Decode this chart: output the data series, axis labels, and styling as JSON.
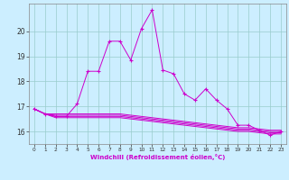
{
  "background_color": "#cceeff",
  "line_color": "#cc00cc",
  "grid_color": "#99cccc",
  "ylim": [
    15.5,
    21.1
  ],
  "xlim": [
    -0.5,
    23.5
  ],
  "yticks": [
    16,
    17,
    18,
    19,
    20
  ],
  "xticks": [
    0,
    1,
    2,
    3,
    4,
    5,
    6,
    7,
    8,
    9,
    10,
    11,
    12,
    13,
    14,
    15,
    16,
    17,
    18,
    19,
    20,
    21,
    22,
    23
  ],
  "xlabel": "Windchill (Refroidissement éolien,°C)",
  "line1_y": [
    16.9,
    16.7,
    16.55,
    16.55,
    16.55,
    16.55,
    16.55,
    16.55,
    16.55,
    16.5,
    16.45,
    16.4,
    16.35,
    16.3,
    16.25,
    16.2,
    16.15,
    16.1,
    16.05,
    16.0,
    16.0,
    15.95,
    15.9,
    15.9
  ],
  "line2_y": [
    16.9,
    16.7,
    16.6,
    16.6,
    16.6,
    16.6,
    16.6,
    16.6,
    16.6,
    16.55,
    16.5,
    16.45,
    16.4,
    16.35,
    16.3,
    16.25,
    16.2,
    16.15,
    16.1,
    16.05,
    16.05,
    16.0,
    15.95,
    15.95
  ],
  "line3_y": [
    16.9,
    16.7,
    16.65,
    16.65,
    16.65,
    16.65,
    16.65,
    16.65,
    16.65,
    16.6,
    16.55,
    16.5,
    16.45,
    16.4,
    16.35,
    16.3,
    16.25,
    16.2,
    16.15,
    16.1,
    16.1,
    16.05,
    16.0,
    16.0
  ],
  "line4_y": [
    16.9,
    16.7,
    16.7,
    16.7,
    16.7,
    16.7,
    16.7,
    16.7,
    16.7,
    16.65,
    16.6,
    16.55,
    16.5,
    16.45,
    16.4,
    16.35,
    16.3,
    16.25,
    16.2,
    16.15,
    16.15,
    16.1,
    16.05,
    16.05
  ],
  "main_line_y": [
    16.9,
    16.7,
    16.6,
    16.6,
    17.1,
    18.4,
    18.4,
    19.6,
    19.6,
    18.85,
    20.1,
    20.85,
    18.45,
    18.3,
    17.5,
    17.25,
    17.7,
    17.25,
    16.9,
    16.25,
    16.25,
    16.05,
    15.85,
    16.0
  ]
}
